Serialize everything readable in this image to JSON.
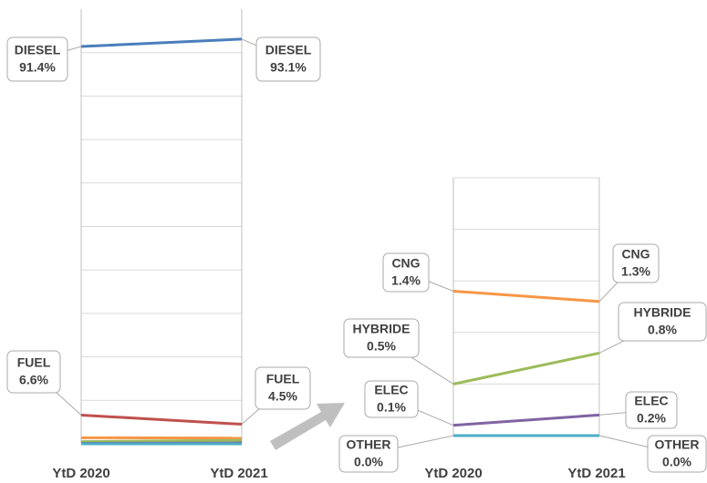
{
  "chart_data": [
    {
      "type": "line",
      "categories": [
        "YtD 2020",
        "YtD 2021"
      ],
      "ylim": [
        0,
        100
      ],
      "yticks": [
        0,
        10,
        20,
        30,
        40,
        50,
        60,
        70,
        80,
        90,
        100
      ],
      "grid": true,
      "series": [
        {
          "name": "DIESEL",
          "color": "#4a7ebb",
          "values": [
            91.4,
            93.1
          ],
          "value_labels": [
            "91.4%",
            "93.1%"
          ]
        },
        {
          "name": "FUEL",
          "color": "#c0504d",
          "values": [
            6.6,
            4.5
          ],
          "value_labels": [
            "6.6%",
            "4.5%"
          ]
        },
        {
          "color": "#f79646",
          "values": [
            1.4,
            1.3
          ]
        },
        {
          "color": "#9bbb59",
          "values": [
            0.5,
            0.8
          ]
        },
        {
          "color": "#8064a2",
          "values": [
            0.1,
            0.2
          ]
        },
        {
          "color": "#4bacc6",
          "values": [
            0.0,
            0.0
          ]
        }
      ]
    },
    {
      "type": "line",
      "categories": [
        "YtD 2020",
        "YtD 2021"
      ],
      "ylim": [
        0,
        2.5
      ],
      "yticks": [
        0,
        0.5,
        1,
        1.5,
        2,
        2.5
      ],
      "grid": true,
      "series": [
        {
          "name": "CNG",
          "color": "#f79646",
          "values": [
            1.4,
            1.3
          ],
          "value_labels": [
            "1.4%",
            "1.3%"
          ]
        },
        {
          "name": "HYBRIDE",
          "color": "#9bbb59",
          "values": [
            0.5,
            0.8
          ],
          "value_labels": [
            "0.5%",
            "0.8%"
          ]
        },
        {
          "name": "ELEC",
          "color": "#8064a2",
          "values": [
            0.1,
            0.2
          ],
          "value_labels": [
            "0.1%",
            "0.2%"
          ]
        },
        {
          "name": "OTHER",
          "color": "#4bacc6",
          "values": [
            0.0,
            0.0
          ],
          "value_labels": [
            "0.0%",
            "0.0%"
          ]
        }
      ]
    }
  ]
}
